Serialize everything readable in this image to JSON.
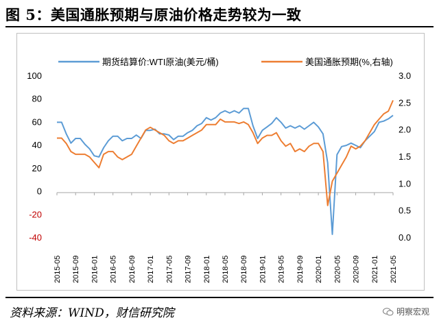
{
  "figure": {
    "title": "图 5：美国通胀预期与原油价格走势较为一致",
    "source": "资料来源：WIND，财信研究院",
    "watermark": "明察宏观"
  },
  "colors": {
    "wti": "#5b9bd5",
    "inflation": "#ed7d31",
    "negative_tick": "#c00000"
  },
  "chart_data": {
    "type": "line",
    "x_tick_labels": [
      "2015-05",
      "2015-09",
      "2016-01",
      "2016-05",
      "2016-09",
      "2017-01",
      "2017-05",
      "2017-09",
      "2018-01",
      "2018-05",
      "2018-09",
      "2019-01",
      "2019-05",
      "2019-09",
      "2020-01",
      "2020-05",
      "2020-09",
      "2021-01",
      "2021-05"
    ],
    "left_axis": {
      "ylim": [
        -40,
        100
      ],
      "ticks": [
        "-40",
        "-20",
        "0",
        "20",
        "40",
        "60",
        "80",
        "100"
      ]
    },
    "right_axis": {
      "ylim": [
        0.0,
        3.0
      ],
      "ticks": [
        "0.0",
        "0.5",
        "1.0",
        "1.5",
        "2.0",
        "2.5",
        "3.0"
      ]
    },
    "legend_position": "top",
    "series": [
      {
        "name": "期货结算价:WTI原油(美元/桶)",
        "axis": "left",
        "points": [
          [
            "2015-05",
            60
          ],
          [
            "2015-06",
            60
          ],
          [
            "2015-07",
            50
          ],
          [
            "2015-08",
            42
          ],
          [
            "2015-09",
            46
          ],
          [
            "2015-10",
            46
          ],
          [
            "2015-11",
            41
          ],
          [
            "2015-12",
            37
          ],
          [
            "2016-01",
            31
          ],
          [
            "2016-02",
            30
          ],
          [
            "2016-03",
            38
          ],
          [
            "2016-04",
            44
          ],
          [
            "2016-05",
            48
          ],
          [
            "2016-06",
            48
          ],
          [
            "2016-07",
            44
          ],
          [
            "2016-08",
            46
          ],
          [
            "2016-09",
            46
          ],
          [
            "2016-10",
            49
          ],
          [
            "2016-11",
            46
          ],
          [
            "2016-12",
            53
          ],
          [
            "2017-01",
            53
          ],
          [
            "2017-02",
            54
          ],
          [
            "2017-03",
            50
          ],
          [
            "2017-04",
            50
          ],
          [
            "2017-05",
            49
          ],
          [
            "2017-06",
            45
          ],
          [
            "2017-07",
            48
          ],
          [
            "2017-08",
            48
          ],
          [
            "2017-09",
            51
          ],
          [
            "2017-10",
            53
          ],
          [
            "2017-11",
            57
          ],
          [
            "2017-12",
            59
          ],
          [
            "2018-01",
            64
          ],
          [
            "2018-02",
            62
          ],
          [
            "2018-03",
            64
          ],
          [
            "2018-04",
            68
          ],
          [
            "2018-05",
            70
          ],
          [
            "2018-06",
            68
          ],
          [
            "2018-07",
            70
          ],
          [
            "2018-08",
            68
          ],
          [
            "2018-09",
            72
          ],
          [
            "2018-10",
            72
          ],
          [
            "2018-11",
            57
          ],
          [
            "2018-12",
            46
          ],
          [
            "2019-01",
            53
          ],
          [
            "2019-02",
            56
          ],
          [
            "2019-03",
            59
          ],
          [
            "2019-04",
            64
          ],
          [
            "2019-05",
            60
          ],
          [
            "2019-06",
            55
          ],
          [
            "2019-07",
            57
          ],
          [
            "2019-08",
            55
          ],
          [
            "2019-09",
            57
          ],
          [
            "2019-10",
            54
          ],
          [
            "2019-11",
            57
          ],
          [
            "2019-12",
            60
          ],
          [
            "2020-01",
            56
          ],
          [
            "2020-02",
            50
          ],
          [
            "2020-03",
            25
          ],
          [
            "2020-04",
            -37
          ],
          [
            "2020-05",
            32
          ],
          [
            "2020-06",
            39
          ],
          [
            "2020-07",
            40
          ],
          [
            "2020-08",
            42
          ],
          [
            "2020-09",
            40
          ],
          [
            "2020-10",
            38
          ],
          [
            "2020-11",
            44
          ],
          [
            "2020-12",
            48
          ],
          [
            "2021-01",
            52
          ],
          [
            "2021-02",
            60
          ],
          [
            "2021-03",
            61
          ],
          [
            "2021-04",
            63
          ],
          [
            "2021-05",
            66
          ]
        ]
      },
      {
        "name": "美国通胀预期(%,右轴)",
        "axis": "right",
        "points": [
          [
            "2015-05",
            1.85
          ],
          [
            "2015-06",
            1.85
          ],
          [
            "2015-07",
            1.75
          ],
          [
            "2015-08",
            1.6
          ],
          [
            "2015-09",
            1.55
          ],
          [
            "2015-10",
            1.55
          ],
          [
            "2015-11",
            1.55
          ],
          [
            "2015-12",
            1.5
          ],
          [
            "2016-01",
            1.4
          ],
          [
            "2016-02",
            1.3
          ],
          [
            "2016-03",
            1.55
          ],
          [
            "2016-04",
            1.6
          ],
          [
            "2016-05",
            1.6
          ],
          [
            "2016-06",
            1.5
          ],
          [
            "2016-07",
            1.45
          ],
          [
            "2016-08",
            1.5
          ],
          [
            "2016-09",
            1.55
          ],
          [
            "2016-10",
            1.7
          ],
          [
            "2016-11",
            1.85
          ],
          [
            "2016-12",
            2.0
          ],
          [
            "2017-01",
            2.05
          ],
          [
            "2017-02",
            2.0
          ],
          [
            "2017-03",
            1.95
          ],
          [
            "2017-04",
            1.9
          ],
          [
            "2017-05",
            1.8
          ],
          [
            "2017-06",
            1.75
          ],
          [
            "2017-07",
            1.8
          ],
          [
            "2017-08",
            1.8
          ],
          [
            "2017-09",
            1.85
          ],
          [
            "2017-10",
            1.9
          ],
          [
            "2017-11",
            1.95
          ],
          [
            "2017-12",
            2.0
          ],
          [
            "2018-01",
            2.1
          ],
          [
            "2018-02",
            2.1
          ],
          [
            "2018-03",
            2.1
          ],
          [
            "2018-04",
            2.2
          ],
          [
            "2018-05",
            2.15
          ],
          [
            "2018-06",
            2.15
          ],
          [
            "2018-07",
            2.15
          ],
          [
            "2018-08",
            2.12
          ],
          [
            "2018-09",
            2.15
          ],
          [
            "2018-10",
            2.1
          ],
          [
            "2018-11",
            1.95
          ],
          [
            "2018-12",
            1.75
          ],
          [
            "2019-01",
            1.85
          ],
          [
            "2019-02",
            1.9
          ],
          [
            "2019-03",
            1.9
          ],
          [
            "2019-04",
            1.95
          ],
          [
            "2019-05",
            1.8
          ],
          [
            "2019-06",
            1.7
          ],
          [
            "2019-07",
            1.75
          ],
          [
            "2019-08",
            1.6
          ],
          [
            "2019-09",
            1.65
          ],
          [
            "2019-10",
            1.6
          ],
          [
            "2019-11",
            1.7
          ],
          [
            "2019-12",
            1.75
          ],
          [
            "2020-01",
            1.75
          ],
          [
            "2020-02",
            1.6
          ],
          [
            "2020-03",
            0.6
          ],
          [
            "2020-04",
            1.05
          ],
          [
            "2020-05",
            1.2
          ],
          [
            "2020-06",
            1.35
          ],
          [
            "2020-07",
            1.5
          ],
          [
            "2020-08",
            1.7
          ],
          [
            "2020-09",
            1.65
          ],
          [
            "2020-10",
            1.7
          ],
          [
            "2020-11",
            1.8
          ],
          [
            "2020-12",
            1.95
          ],
          [
            "2021-01",
            2.1
          ],
          [
            "2021-02",
            2.2
          ],
          [
            "2021-03",
            2.3
          ],
          [
            "2021-04",
            2.35
          ],
          [
            "2021-05",
            2.55
          ]
        ]
      }
    ]
  }
}
